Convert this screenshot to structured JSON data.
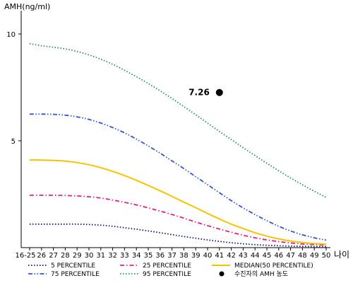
{
  "chart_data": {
    "type": "line",
    "ylabel": "AMH(ng/ml)",
    "xlabel": "나이",
    "ylim": [
      0,
      11
    ],
    "y_ticks": [
      "5",
      "10"
    ],
    "y_tick_values": [
      5,
      10
    ],
    "x": [
      "16-25",
      "26",
      "27",
      "28",
      "29",
      "30",
      "31",
      "32",
      "33",
      "34",
      "35",
      "36",
      "37",
      "38",
      "39",
      "40",
      "41",
      "42",
      "43",
      "44",
      "45",
      "46",
      "47",
      "48",
      "49",
      "50"
    ],
    "grid": false,
    "legend_position": "bottom",
    "series": [
      {
        "name": "5 PERCENTILE",
        "color": "#0a1a6e",
        "dash": "dotted",
        "values": [
          1.1,
          1.1,
          1.1,
          1.1,
          1.1,
          1.08,
          1.05,
          1.0,
          0.93,
          0.86,
          0.78,
          0.7,
          0.61,
          0.52,
          0.44,
          0.36,
          0.29,
          0.23,
          0.18,
          0.14,
          0.11,
          0.09,
          0.07,
          0.06,
          0.05,
          0.05
        ]
      },
      {
        "name": "25 PERCENTILE",
        "color": "#e0208a",
        "dash": "dashdot",
        "values": [
          2.45,
          2.45,
          2.45,
          2.44,
          2.42,
          2.38,
          2.32,
          2.23,
          2.12,
          2.0,
          1.86,
          1.71,
          1.55,
          1.38,
          1.2,
          1.03,
          0.87,
          0.72,
          0.58,
          0.46,
          0.36,
          0.28,
          0.22,
          0.17,
          0.14,
          0.12
        ]
      },
      {
        "name": "MEDIAN(50 PERCENTILE)",
        "color": "#f5c400",
        "dash": "solid",
        "values": [
          4.1,
          4.1,
          4.08,
          4.05,
          3.98,
          3.88,
          3.74,
          3.57,
          3.37,
          3.15,
          2.91,
          2.66,
          2.4,
          2.13,
          1.87,
          1.6,
          1.34,
          1.1,
          0.89,
          0.7,
          0.54,
          0.41,
          0.31,
          0.24,
          0.19,
          0.16
        ]
      },
      {
        "name": "75 PERCENTILE",
        "color": "#3355cc",
        "dash": "dashdotdot",
        "values": [
          6.25,
          6.25,
          6.24,
          6.2,
          6.12,
          6.0,
          5.83,
          5.62,
          5.37,
          5.08,
          4.76,
          4.42,
          4.06,
          3.7,
          3.32,
          2.95,
          2.57,
          2.2,
          1.86,
          1.55,
          1.26,
          1.0,
          0.78,
          0.6,
          0.46,
          0.35
        ]
      },
      {
        "name": "95 PERCENTILE",
        "color": "#2e8b57",
        "dash": "dotted",
        "values": [
          9.55,
          9.45,
          9.38,
          9.3,
          9.18,
          9.02,
          8.82,
          8.58,
          8.3,
          8.0,
          7.68,
          7.34,
          6.98,
          6.6,
          6.22,
          5.83,
          5.44,
          5.06,
          4.68,
          4.31,
          3.95,
          3.6,
          3.26,
          2.94,
          2.64,
          2.35
        ]
      }
    ],
    "marker": {
      "name": "수진자의 AMH 농도",
      "x": "41",
      "y": 7.26,
      "label": "7.26",
      "color": "#000000"
    },
    "legend": [
      {
        "name": "5 PERCENTILE",
        "color": "#0a1a6e",
        "dash": "dotted"
      },
      {
        "name": "25 PERCENTILE",
        "color": "#e0208a",
        "dash": "dashdot"
      },
      {
        "name": "MEDIAN(50 PERCENTILE)",
        "color": "#f5c400",
        "dash": "solid"
      },
      {
        "name": "75 PERCENTILE",
        "color": "#3355cc",
        "dash": "dashdotdot"
      },
      {
        "name": "95 PERCENTILE",
        "color": "#2e8b57",
        "dash": "dotted"
      },
      {
        "name": "수진자의 AMH 농도",
        "color": "#000000",
        "dash": "dot-marker"
      }
    ]
  }
}
